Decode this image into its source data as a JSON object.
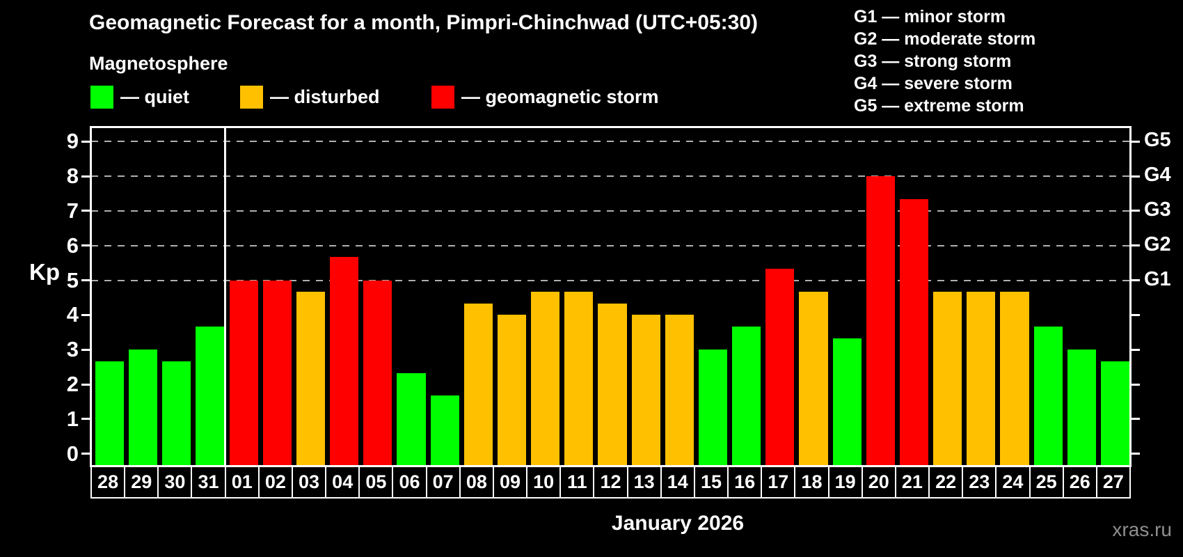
{
  "title": "Geomagnetic Forecast for a month, Pimpri-Chinchwad (UTC+05:30)",
  "subtitle": "Magnetosphere",
  "legend": {
    "quiet_label": "— quiet",
    "disturbed_label": "— disturbed",
    "storm_label": "— geomagnetic storm"
  },
  "g_legend": [
    "G1 — minor storm",
    "G2 — moderate storm",
    "G3 — strong storm",
    "G4 — severe storm",
    "G5 — extreme storm"
  ],
  "watermark": "xras.ru",
  "colors": {
    "quiet": "#00ff00",
    "disturbed": "#ffc000",
    "storm": "#ff0000",
    "axis": "#ffffff",
    "grid": "#b0b0b0",
    "background": "#000000",
    "watermark": "#8f8f8f"
  },
  "chart_data": {
    "type": "bar",
    "title": "Geomagnetic Forecast for a month, Pimpri-Chinchwad (UTC+05:30)",
    "xlabel": "January 2026",
    "ylabel": "Kp",
    "ylim": [
      0,
      9.4
    ],
    "y_ticks": [
      0,
      1,
      2,
      3,
      4,
      5,
      6,
      7,
      8,
      9
    ],
    "grid_levels": [
      5,
      6,
      7,
      8,
      9
    ],
    "right_axis_labels": [
      {
        "kp": 5,
        "label": "G1"
      },
      {
        "kp": 6,
        "label": "G2"
      },
      {
        "kp": 7,
        "label": "G3"
      },
      {
        "kp": 8,
        "label": "G4"
      },
      {
        "kp": 9,
        "label": "G5"
      }
    ],
    "month_separator_after_index": 3,
    "legend_position": "top-left",
    "grid": "dashed horizontal at storm levels",
    "categories": [
      "28",
      "29",
      "30",
      "31",
      "01",
      "02",
      "03",
      "04",
      "05",
      "06",
      "07",
      "08",
      "09",
      "10",
      "11",
      "12",
      "13",
      "14",
      "15",
      "16",
      "17",
      "18",
      "19",
      "20",
      "21",
      "22",
      "23",
      "24",
      "25",
      "26",
      "27"
    ],
    "values": [
      2.67,
      3,
      2.67,
      3.67,
      5,
      5,
      4.67,
      5.67,
      5,
      2.33,
      1.67,
      4.33,
      4,
      4.67,
      4.67,
      4.33,
      4,
      4,
      3,
      3.67,
      5.33,
      4.67,
      3.33,
      8,
      7.33,
      4.67,
      4.67,
      4.67,
      3.67,
      3,
      2.67
    ],
    "statuses": [
      "quiet",
      "quiet",
      "quiet",
      "quiet",
      "storm",
      "storm",
      "disturbed",
      "storm",
      "storm",
      "quiet",
      "quiet",
      "disturbed",
      "disturbed",
      "disturbed",
      "disturbed",
      "disturbed",
      "disturbed",
      "disturbed",
      "quiet",
      "quiet",
      "storm",
      "disturbed",
      "quiet",
      "storm",
      "storm",
      "disturbed",
      "disturbed",
      "disturbed",
      "quiet",
      "quiet",
      "quiet"
    ]
  }
}
